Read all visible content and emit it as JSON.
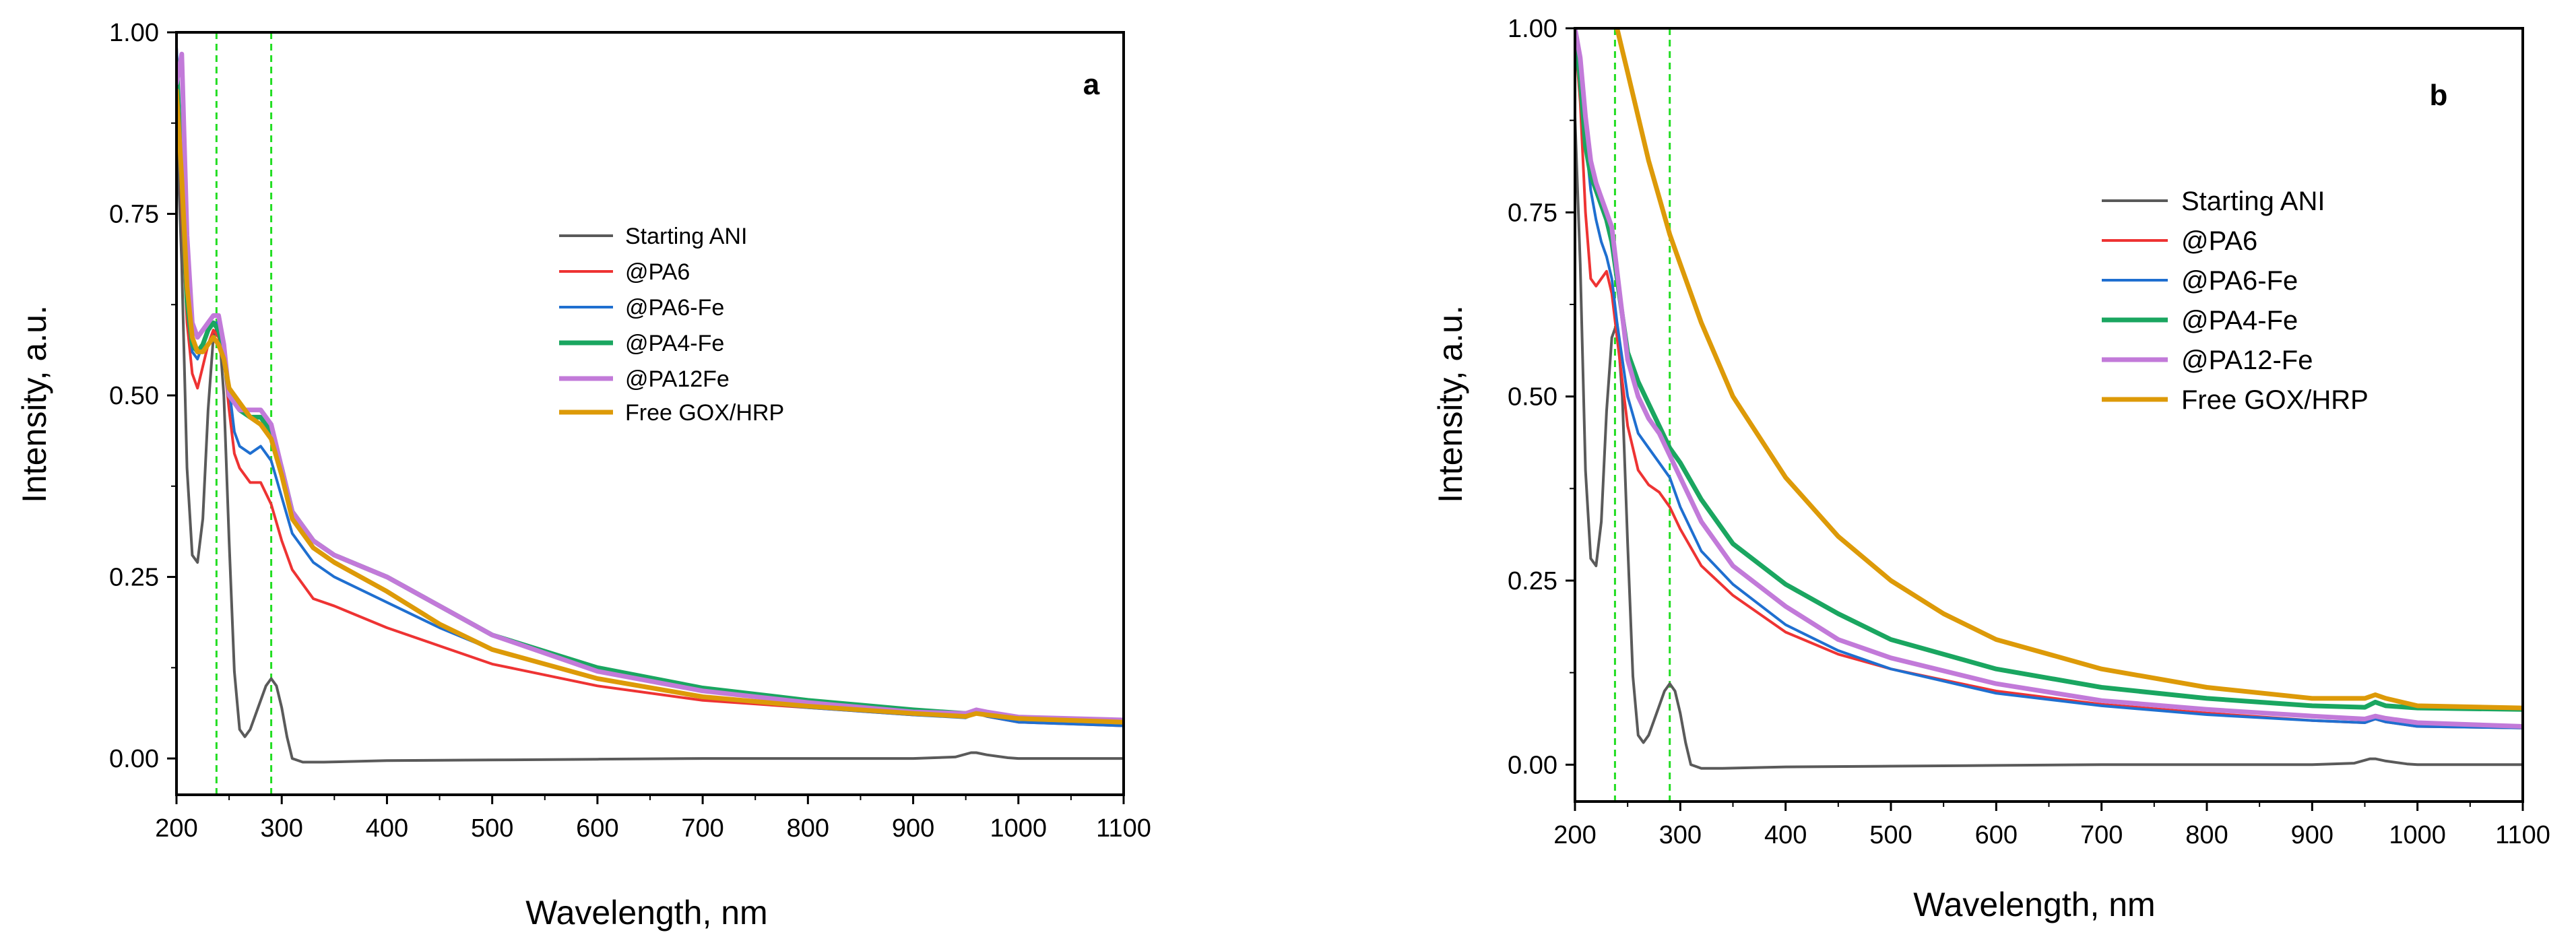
{
  "chart_data": [
    {
      "type": "line",
      "panel_label": "a",
      "xlabel": "Wavelength, nm",
      "ylabel": "Intensity, a.u.",
      "xlim": [
        200,
        1100
      ],
      "ylim": [
        -0.05,
        1.0
      ],
      "xticks": [
        200,
        300,
        400,
        500,
        600,
        700,
        800,
        900,
        1000,
        1100
      ],
      "yticks": [
        0.0,
        0.25,
        0.5,
        0.75,
        1.0
      ],
      "ytick_labels": [
        "0.00",
        "0.25",
        "0.50",
        "0.75",
        "1.00"
      ],
      "grid": false,
      "legend_position": "center-right",
      "reference_lines_x": [
        238,
        290
      ],
      "reference_line_color": "#22dd22",
      "series": [
        {
          "name": "Starting ANI",
          "color": "#5a5a5a",
          "width": 4,
          "x": [
            200,
            205,
            210,
            215,
            220,
            225,
            230,
            235,
            240,
            245,
            250,
            255,
            260,
            265,
            270,
            275,
            280,
            285,
            290,
            295,
            300,
            305,
            310,
            320,
            340,
            400,
            500,
            600,
            700,
            800,
            900,
            940,
            955,
            960,
            970,
            990,
            1000,
            1100
          ],
          "y": [
            0.88,
            0.68,
            0.4,
            0.28,
            0.27,
            0.33,
            0.48,
            0.58,
            0.6,
            0.5,
            0.3,
            0.12,
            0.04,
            0.03,
            0.04,
            0.06,
            0.08,
            0.1,
            0.11,
            0.1,
            0.07,
            0.03,
            0.0,
            -0.005,
            -0.005,
            -0.003,
            -0.002,
            -0.001,
            0.0,
            0.0,
            0.0,
            0.002,
            0.008,
            0.008,
            0.005,
            0.001,
            0.0,
            0.0
          ]
        },
        {
          "name": "@PA6",
          "color": "#ee3333",
          "width": 4,
          "x": [
            200,
            205,
            210,
            215,
            220,
            225,
            230,
            235,
            240,
            245,
            250,
            255,
            260,
            270,
            280,
            290,
            300,
            310,
            330,
            350,
            400,
            450,
            500,
            600,
            700,
            800,
            900,
            950,
            960,
            970,
            1000,
            1100
          ],
          "y": [
            0.98,
            0.75,
            0.6,
            0.53,
            0.51,
            0.54,
            0.57,
            0.59,
            0.58,
            0.55,
            0.48,
            0.42,
            0.4,
            0.38,
            0.38,
            0.35,
            0.3,
            0.26,
            0.22,
            0.21,
            0.18,
            0.155,
            0.13,
            0.1,
            0.08,
            0.07,
            0.06,
            0.057,
            0.062,
            0.058,
            0.05,
            0.045
          ]
        },
        {
          "name": "@PA6-Fe",
          "color": "#1f6fd0",
          "width": 4,
          "x": [
            200,
            205,
            210,
            215,
            220,
            225,
            230,
            235,
            240,
            245,
            250,
            255,
            260,
            270,
            280,
            290,
            300,
            310,
            330,
            350,
            400,
            450,
            500,
            600,
            700,
            800,
            900,
            950,
            960,
            970,
            1000,
            1100
          ],
          "y": [
            0.98,
            0.82,
            0.64,
            0.56,
            0.55,
            0.57,
            0.59,
            0.6,
            0.6,
            0.57,
            0.51,
            0.45,
            0.43,
            0.42,
            0.43,
            0.41,
            0.36,
            0.31,
            0.27,
            0.25,
            0.215,
            0.18,
            0.15,
            0.11,
            0.085,
            0.07,
            0.06,
            0.056,
            0.062,
            0.058,
            0.05,
            0.045
          ]
        },
        {
          "name": "@PA4-Fe",
          "color": "#1aa660",
          "width": 7,
          "x": [
            200,
            205,
            210,
            215,
            220,
            225,
            230,
            235,
            240,
            245,
            250,
            260,
            270,
            280,
            290,
            300,
            310,
            330,
            350,
            400,
            450,
            500,
            600,
            700,
            800,
            900,
            950,
            960,
            970,
            1000,
            1100
          ],
          "y": [
            0.96,
            0.8,
            0.63,
            0.57,
            0.56,
            0.57,
            0.59,
            0.6,
            0.59,
            0.56,
            0.5,
            0.48,
            0.47,
            0.47,
            0.45,
            0.4,
            0.34,
            0.3,
            0.28,
            0.25,
            0.21,
            0.17,
            0.125,
            0.097,
            0.08,
            0.067,
            0.062,
            0.066,
            0.062,
            0.056,
            0.05
          ]
        },
        {
          "name": "@PA12Fe",
          "color": "#c27ad9",
          "width": 7,
          "x": [
            200,
            205,
            210,
            215,
            220,
            225,
            230,
            235,
            240,
            245,
            250,
            260,
            270,
            280,
            290,
            300,
            310,
            330,
            350,
            400,
            450,
            500,
            600,
            700,
            800,
            900,
            950,
            960,
            970,
            1000,
            1100
          ],
          "y": [
            0.93,
            0.97,
            0.72,
            0.6,
            0.58,
            0.59,
            0.6,
            0.61,
            0.61,
            0.57,
            0.5,
            0.48,
            0.48,
            0.48,
            0.46,
            0.4,
            0.34,
            0.3,
            0.28,
            0.25,
            0.21,
            0.17,
            0.12,
            0.093,
            0.077,
            0.064,
            0.062,
            0.067,
            0.064,
            0.057,
            0.053
          ]
        },
        {
          "name": "Free GOX/HRP",
          "color": "#dd9a08",
          "width": 7,
          "x": [
            200,
            205,
            210,
            215,
            220,
            225,
            230,
            235,
            240,
            245,
            250,
            260,
            270,
            280,
            290,
            300,
            310,
            330,
            350,
            400,
            450,
            500,
            600,
            700,
            800,
            900,
            950,
            960,
            970,
            1000,
            1100
          ],
          "y": [
            0.92,
            0.8,
            0.65,
            0.58,
            0.56,
            0.56,
            0.57,
            0.58,
            0.57,
            0.55,
            0.51,
            0.49,
            0.47,
            0.46,
            0.44,
            0.39,
            0.33,
            0.29,
            0.27,
            0.23,
            0.185,
            0.15,
            0.11,
            0.085,
            0.072,
            0.062,
            0.058,
            0.062,
            0.06,
            0.055,
            0.05
          ]
        }
      ]
    },
    {
      "type": "line",
      "panel_label": "b",
      "xlabel": "Wavelength, nm",
      "ylabel": "Intensity, a.u.",
      "xlim": [
        200,
        1100
      ],
      "ylim": [
        -0.05,
        1.0
      ],
      "xticks": [
        200,
        300,
        400,
        500,
        600,
        700,
        800,
        900,
        1000,
        1100
      ],
      "yticks": [
        0.0,
        0.25,
        0.5,
        0.75,
        1.0
      ],
      "ytick_labels": [
        "0.00",
        "0.25",
        "0.50",
        "0.75",
        "1.00"
      ],
      "grid": false,
      "legend_position": "center-right",
      "reference_lines_x": [
        238,
        290
      ],
      "reference_line_color": "#22dd22",
      "series": [
        {
          "name": "Starting ANI",
          "color": "#5a5a5a",
          "width": 4,
          "x": [
            200,
            205,
            210,
            215,
            220,
            225,
            230,
            235,
            240,
            245,
            250,
            255,
            260,
            265,
            270,
            275,
            280,
            285,
            290,
            295,
            300,
            305,
            310,
            320,
            340,
            400,
            500,
            600,
            700,
            800,
            900,
            940,
            955,
            960,
            970,
            990,
            1000,
            1100
          ],
          "y": [
            0.88,
            0.68,
            0.4,
            0.28,
            0.27,
            0.33,
            0.48,
            0.58,
            0.6,
            0.5,
            0.3,
            0.12,
            0.04,
            0.03,
            0.04,
            0.06,
            0.08,
            0.1,
            0.11,
            0.1,
            0.07,
            0.03,
            0.0,
            -0.005,
            -0.005,
            -0.003,
            -0.002,
            -0.001,
            0.0,
            0.0,
            0.0,
            0.002,
            0.008,
            0.008,
            0.005,
            0.001,
            0.0,
            0.0
          ]
        },
        {
          "name": "@PA6",
          "color": "#ee3333",
          "width": 4,
          "x": [
            200,
            205,
            210,
            215,
            220,
            225,
            230,
            235,
            240,
            250,
            260,
            270,
            280,
            290,
            300,
            320,
            350,
            400,
            450,
            500,
            600,
            700,
            800,
            900,
            950,
            960,
            970,
            1000,
            1100
          ],
          "y": [
            0.99,
            0.9,
            0.75,
            0.66,
            0.65,
            0.66,
            0.67,
            0.64,
            0.58,
            0.46,
            0.4,
            0.38,
            0.37,
            0.35,
            0.32,
            0.27,
            0.23,
            0.18,
            0.15,
            0.13,
            0.1,
            0.082,
            0.07,
            0.06,
            0.057,
            0.062,
            0.058,
            0.052,
            0.05
          ]
        },
        {
          "name": "@PA6-Fe",
          "color": "#1f6fd0",
          "width": 4,
          "x": [
            200,
            205,
            210,
            215,
            220,
            225,
            230,
            235,
            240,
            250,
            260,
            270,
            280,
            290,
            300,
            320,
            350,
            400,
            450,
            500,
            600,
            700,
            800,
            900,
            950,
            960,
            970,
            1000,
            1100
          ],
          "y": [
            0.99,
            0.95,
            0.85,
            0.78,
            0.74,
            0.71,
            0.69,
            0.66,
            0.6,
            0.5,
            0.45,
            0.43,
            0.41,
            0.39,
            0.35,
            0.29,
            0.245,
            0.19,
            0.155,
            0.13,
            0.097,
            0.08,
            0.068,
            0.06,
            0.057,
            0.062,
            0.058,
            0.052,
            0.05
          ]
        },
        {
          "name": "@PA4-Fe",
          "color": "#1aa660",
          "width": 7,
          "x": [
            200,
            205,
            210,
            215,
            220,
            225,
            230,
            235,
            240,
            250,
            260,
            270,
            280,
            290,
            300,
            320,
            350,
            400,
            450,
            500,
            600,
            700,
            800,
            900,
            950,
            960,
            970,
            1000,
            1100
          ],
          "y": [
            0.99,
            0.93,
            0.84,
            0.8,
            0.78,
            0.76,
            0.74,
            0.71,
            0.66,
            0.56,
            0.52,
            0.49,
            0.46,
            0.43,
            0.41,
            0.36,
            0.3,
            0.245,
            0.205,
            0.17,
            0.13,
            0.105,
            0.09,
            0.08,
            0.078,
            0.085,
            0.08,
            0.077,
            0.075
          ]
        },
        {
          "name": "@PA12-Fe",
          "color": "#c27ad9",
          "width": 7,
          "x": [
            200,
            205,
            210,
            215,
            220,
            225,
            230,
            235,
            240,
            250,
            260,
            270,
            280,
            290,
            300,
            320,
            350,
            400,
            450,
            500,
            600,
            700,
            800,
            900,
            950,
            960,
            970,
            1000,
            1100
          ],
          "y": [
            1.0,
            0.96,
            0.88,
            0.82,
            0.79,
            0.77,
            0.75,
            0.73,
            0.67,
            0.55,
            0.5,
            0.47,
            0.45,
            0.42,
            0.39,
            0.33,
            0.27,
            0.215,
            0.17,
            0.145,
            0.11,
            0.087,
            0.075,
            0.066,
            0.062,
            0.066,
            0.063,
            0.057,
            0.052
          ]
        },
        {
          "name": "Free GOX/HRP",
          "color": "#dd9a08",
          "width": 7,
          "x": [
            240,
            245,
            250,
            260,
            270,
            280,
            290,
            300,
            320,
            350,
            400,
            450,
            500,
            550,
            600,
            700,
            800,
            900,
            950,
            960,
            970,
            1000,
            1100
          ],
          "y": [
            1.0,
            0.97,
            0.94,
            0.88,
            0.82,
            0.77,
            0.72,
            0.68,
            0.6,
            0.5,
            0.39,
            0.31,
            0.25,
            0.205,
            0.17,
            0.13,
            0.105,
            0.09,
            0.09,
            0.095,
            0.09,
            0.08,
            0.077
          ]
        }
      ]
    }
  ]
}
